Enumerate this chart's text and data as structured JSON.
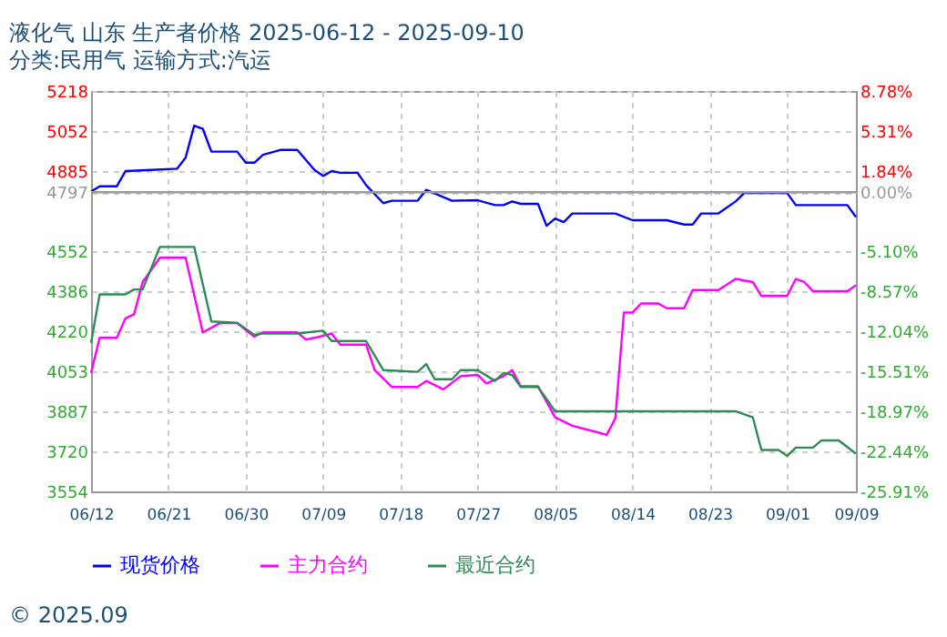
{
  "chart_data": {
    "type": "line",
    "title": "液化气 山东 生产者价格 2025-06-12 - 2025-09-10",
    "subtitle": "分类:民用气 运输方式:汽运",
    "xlim": [
      "2025-06-12",
      "2025-09-09"
    ],
    "xticks": [
      {
        "value": "2025-06-12",
        "label": "06/12"
      },
      {
        "value": "2025-06-21",
        "label": "06/21"
      },
      {
        "value": "2025-06-30",
        "label": "06/30"
      },
      {
        "value": "2025-07-09",
        "label": "07/09"
      },
      {
        "value": "2025-07-18",
        "label": "07/18"
      },
      {
        "value": "2025-07-27",
        "label": "07/27"
      },
      {
        "value": "2025-08-05",
        "label": "08/05"
      },
      {
        "value": "2025-08-14",
        "label": "08/14"
      },
      {
        "value": "2025-08-23",
        "label": "08/23"
      },
      {
        "value": "2025-09-01",
        "label": "09/01"
      },
      {
        "value": "2025-09-09",
        "label": "09/09"
      }
    ],
    "ylim": [
      3554,
      5218
    ],
    "yticks": [
      3554,
      3720,
      3887,
      4053,
      4220,
      4386,
      4552,
      4797,
      4885,
      5052,
      5218
    ],
    "y2lim": [
      -25.91,
      8.78
    ],
    "y2ticks": [
      {
        "value": -25.91,
        "label": "-25.91%"
      },
      {
        "value": -22.44,
        "label": "-22.44%"
      },
      {
        "value": -18.97,
        "label": "-18.97%"
      },
      {
        "value": -15.51,
        "label": "-15.51%"
      },
      {
        "value": -12.04,
        "label": "-12.04%"
      },
      {
        "value": -8.57,
        "label": "-8.57%"
      },
      {
        "value": -5.1,
        "label": "-5.10%"
      },
      {
        "value": 0,
        "label": "0.00%"
      },
      {
        "value": 1.84,
        "label": "1.84%"
      },
      {
        "value": 5.31,
        "label": "5.31%"
      },
      {
        "value": 8.78,
        "label": "8.78%"
      }
    ],
    "grid": true,
    "legend": "bottom",
    "marker": "none",
    "line_style": "solid",
    "ref_lines": [
      {
        "axis": "y",
        "value": 4797,
        "color": "#999999"
      }
    ],
    "annotations": [
      "© 2025.09"
    ],
    "series": [
      {
        "name": "现货价格",
        "color": "#0000ff",
        "x": [
          "2025-06-12",
          "2025-06-13",
          "2025-06-15",
          "2025-06-16",
          "2025-06-19",
          "2025-06-22",
          "2025-06-23",
          "2025-06-24",
          "2025-06-25",
          "2025-06-26",
          "2025-06-29",
          "2025-06-30",
          "2025-07-01",
          "2025-07-02",
          "2025-07-04",
          "2025-07-06",
          "2025-07-08",
          "2025-07-09",
          "2025-07-10",
          "2025-07-11",
          "2025-07-13",
          "2025-07-14",
          "2025-07-16",
          "2025-07-17",
          "2025-07-20",
          "2025-07-21",
          "2025-07-23",
          "2025-07-24",
          "2025-07-27",
          "2025-07-29",
          "2025-07-30",
          "2025-07-31",
          "2025-08-01",
          "2025-08-03",
          "2025-08-04",
          "2025-08-05",
          "2025-08-06",
          "2025-08-07",
          "2025-08-12",
          "2025-08-14",
          "2025-08-18",
          "2025-08-20",
          "2025-08-21",
          "2025-08-22",
          "2025-08-24",
          "2025-08-26",
          "2025-08-27",
          "2025-09-01",
          "2025-09-02",
          "2025-09-08",
          "2025-09-09"
        ],
        "values": [
          4800,
          4822,
          4822,
          4885,
          4890,
          4895,
          4941,
          5074,
          5061,
          4966,
          4966,
          4920,
          4920,
          4953,
          4973,
          4973,
          4890,
          4865,
          4885,
          4878,
          4878,
          4827,
          4752,
          4762,
          4762,
          4807,
          4777,
          4762,
          4764,
          4744,
          4744,
          4759,
          4749,
          4749,
          4658,
          4688,
          4673,
          4709,
          4709,
          4681,
          4681,
          4663,
          4663,
          4709,
          4709,
          4759,
          4794,
          4794,
          4744,
          4744,
          4694
        ]
      },
      {
        "name": "主力合约",
        "color": "#ff00ff",
        "x": [
          "2025-06-12",
          "2025-06-13",
          "2025-06-15",
          "2025-06-16",
          "2025-06-17",
          "2025-06-18",
          "2025-06-20",
          "2025-06-23",
          "2025-06-25",
          "2025-06-27",
          "2025-06-29",
          "2025-07-01",
          "2025-07-02",
          "2025-07-06",
          "2025-07-07",
          "2025-07-08",
          "2025-07-10",
          "2025-07-11",
          "2025-07-14",
          "2025-07-15",
          "2025-07-17",
          "2025-07-20",
          "2025-07-21",
          "2025-07-23",
          "2025-07-25",
          "2025-07-27",
          "2025-07-28",
          "2025-07-30",
          "2025-07-31",
          "2025-08-01",
          "2025-08-03",
          "2025-08-05",
          "2025-08-07",
          "2025-08-10",
          "2025-08-11",
          "2025-08-12",
          "2025-08-13",
          "2025-08-14",
          "2025-08-15",
          "2025-08-17",
          "2025-08-18",
          "2025-08-20",
          "2025-08-21",
          "2025-08-24",
          "2025-08-26",
          "2025-08-28",
          "2025-08-29",
          "2025-09-01",
          "2025-09-02",
          "2025-09-03",
          "2025-09-04",
          "2025-09-08",
          "2025-09-09"
        ],
        "values": [
          4046,
          4192,
          4192,
          4273,
          4290,
          4424,
          4525,
          4525,
          4215,
          4253,
          4253,
          4197,
          4215,
          4215,
          4185,
          4192,
          4210,
          4164,
          4164,
          4058,
          3988,
          3988,
          4013,
          3978,
          4033,
          4038,
          4003,
          4033,
          4058,
          3991,
          3991,
          3862,
          3827,
          3799,
          3789,
          3857,
          4297,
          4297,
          4335,
          4335,
          4315,
          4315,
          4391,
          4391,
          4437,
          4424,
          4366,
          4366,
          4437,
          4424,
          4386,
          4386,
          4411
        ]
      },
      {
        "name": "最近合约",
        "color": "#2e8b57",
        "x": [
          "2025-06-12",
          "2025-06-13",
          "2025-06-16",
          "2025-06-17",
          "2025-06-18",
          "2025-06-20",
          "2025-06-24",
          "2025-06-26",
          "2025-06-29",
          "2025-07-01",
          "2025-07-02",
          "2025-07-06",
          "2025-07-09",
          "2025-07-10",
          "2025-07-14",
          "2025-07-16",
          "2025-07-20",
          "2025-07-21",
          "2025-07-22",
          "2025-07-24",
          "2025-07-25",
          "2025-07-27",
          "2025-07-29",
          "2025-07-30",
          "2025-07-31",
          "2025-08-01",
          "2025-08-03",
          "2025-08-05",
          "2025-08-26",
          "2025-08-28",
          "2025-08-29",
          "2025-08-31",
          "2025-09-01",
          "2025-09-02",
          "2025-09-04",
          "2025-09-05",
          "2025-09-07",
          "2025-09-09"
        ],
        "values": [
          4172,
          4373,
          4373,
          4393,
          4393,
          4570,
          4570,
          4260,
          4255,
          4205,
          4210,
          4210,
          4222,
          4179,
          4179,
          4058,
          4051,
          4083,
          4020,
          4020,
          4058,
          4058,
          4013,
          4046,
          4038,
          3988,
          3988,
          3887,
          3887,
          3862,
          3726,
          3726,
          3701,
          3736,
          3736,
          3766,
          3766,
          3711
        ]
      }
    ]
  }
}
